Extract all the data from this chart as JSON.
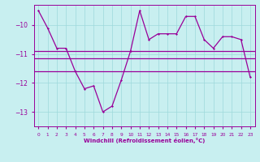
{
  "hours": [
    0,
    1,
    2,
    3,
    4,
    5,
    6,
    7,
    8,
    9,
    10,
    11,
    12,
    13,
    14,
    15,
    16,
    17,
    18,
    19,
    20,
    21,
    22,
    23
  ],
  "windchill": [
    -9.5,
    -10.1,
    -10.8,
    -10.8,
    -11.6,
    -12.2,
    -12.1,
    -13.0,
    -12.8,
    -11.9,
    -10.9,
    -9.5,
    -10.5,
    -10.3,
    -10.3,
    -10.3,
    -9.7,
    -9.7,
    -10.5,
    -10.8,
    -10.4,
    -10.4,
    -10.5,
    -11.8
  ],
  "flat_upper": -10.9,
  "flat_mid": -11.15,
  "flat_lower": -11.6,
  "line_color": "#990099",
  "bg_color": "#c8eff0",
  "grid_color": "#9dd9db",
  "xlabel": "Windchill (Refroidissement éolien,°C)",
  "ylim": [
    -13.5,
    -9.3
  ],
  "yticks": [
    -13,
    -12,
    -11,
    -10
  ],
  "xlim": [
    -0.5,
    23.5
  ]
}
